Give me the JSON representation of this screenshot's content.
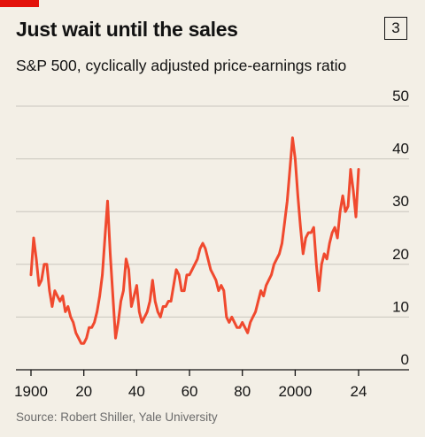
{
  "header": {
    "title": "Just wait until the sales",
    "chart_number": "3",
    "subtitle": "S&P 500, cyclically adjusted price-earnings ratio"
  },
  "footer": {
    "source": "Source: Robert Shiller, Yale University"
  },
  "colors": {
    "series": "#f0492e",
    "brand_red": "#e3120b",
    "grid": "#c9c6bd",
    "axis": "#121212",
    "background": "#f3efe6"
  },
  "chart_data": {
    "type": "line",
    "title": "Just wait until the sales",
    "subtitle": "S&P 500, cyclically adjusted price-earnings ratio",
    "xlabel": "",
    "ylabel": "",
    "x_range": [
      1900,
      2024
    ],
    "ylim": [
      0,
      50
    ],
    "grid": true,
    "y_ticks": [
      0,
      10,
      20,
      30,
      40,
      50
    ],
    "x_ticks": [
      1900,
      1920,
      1940,
      1960,
      1980,
      2000,
      2024
    ],
    "x_tick_labels": [
      "1900",
      "20",
      "40",
      "60",
      "80",
      "2000",
      "24"
    ],
    "series": [
      {
        "x": [
          1900,
          1901,
          1902,
          1903,
          1904,
          1905,
          1906,
          1907,
          1908,
          1909,
          1910,
          1911,
          1912,
          1913,
          1914,
          1915,
          1916,
          1917,
          1918,
          1919,
          1920,
          1921,
          1922,
          1923,
          1924,
          1925,
          1926,
          1927,
          1928,
          1929,
          1930,
          1931,
          1932,
          1933,
          1934,
          1935,
          1936,
          1937,
          1938,
          1939,
          1940,
          1941,
          1942,
          1943,
          1944,
          1945,
          1946,
          1947,
          1948,
          1949,
          1950,
          1951,
          1952,
          1953,
          1954,
          1955,
          1956,
          1957,
          1958,
          1959,
          1960,
          1961,
          1962,
          1963,
          1964,
          1965,
          1966,
          1967,
          1968,
          1969,
          1970,
          1971,
          1972,
          1973,
          1974,
          1975,
          1976,
          1977,
          1978,
          1979,
          1980,
          1981,
          1982,
          1983,
          1984,
          1985,
          1986,
          1987,
          1988,
          1989,
          1990,
          1991,
          1992,
          1993,
          1994,
          1995,
          1996,
          1997,
          1998,
          1999,
          2000,
          2001,
          2002,
          2003,
          2004,
          2005,
          2006,
          2007,
          2008,
          2009,
          2010,
          2011,
          2012,
          2013,
          2014,
          2015,
          2016,
          2017,
          2018,
          2019,
          2020,
          2021,
          2022,
          2023,
          2024
        ],
        "values": [
          18,
          25,
          21,
          16,
          17,
          20,
          20,
          15,
          12,
          15,
          14,
          13,
          14,
          11,
          12,
          10,
          9,
          7,
          6,
          5,
          5,
          6,
          8,
          8,
          9,
          11,
          14,
          18,
          25,
          32,
          22,
          14,
          6,
          9,
          13,
          15,
          21,
          19,
          12,
          14,
          16,
          11,
          9,
          10,
          11,
          13,
          17,
          13,
          11,
          10,
          12,
          12,
          13,
          13,
          16,
          19,
          18,
          15,
          15,
          18,
          18,
          19,
          20,
          21,
          23,
          24,
          23,
          21,
          19,
          18,
          17,
          15,
          16,
          15,
          10,
          9,
          10,
          9,
          8,
          8,
          9,
          8,
          7,
          9,
          10,
          11,
          13,
          15,
          14,
          16,
          17,
          18,
          20,
          21,
          22,
          24,
          28,
          32,
          38,
          44,
          40,
          33,
          27,
          22,
          25,
          26,
          26,
          27,
          20,
          15,
          20,
          22,
          21,
          24,
          26,
          27,
          25,
          30,
          33,
          30,
          31,
          38,
          34,
          29,
          38
        ]
      }
    ]
  }
}
